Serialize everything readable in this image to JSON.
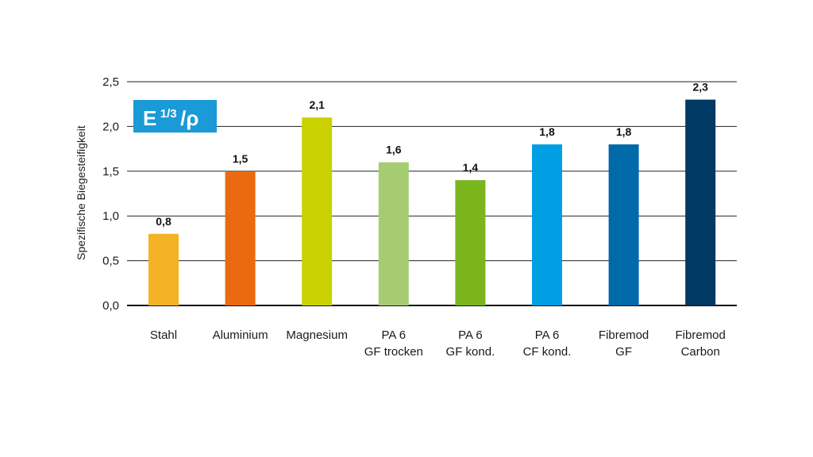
{
  "chart_data": {
    "type": "bar",
    "categories": [
      [
        "Stahl"
      ],
      [
        "Aluminium"
      ],
      [
        "Magnesium"
      ],
      [
        "PA 6",
        "GF trocken"
      ],
      [
        "PA 6",
        "GF kond."
      ],
      [
        "PA 6",
        "CF kond."
      ],
      [
        "Fibremod",
        "GF"
      ],
      [
        "Fibremod",
        "Carbon"
      ]
    ],
    "values": [
      0.8,
      1.5,
      2.1,
      1.6,
      1.4,
      1.8,
      1.8,
      2.3
    ],
    "data_labels": [
      "0,8",
      "1,5",
      "2,1",
      "1,6",
      "1,4",
      "1,8",
      "1,8",
      "2,3"
    ],
    "colors": [
      "#f4b324",
      "#e96a10",
      "#c9d200",
      "#a6cc72",
      "#7ab51d",
      "#009fe3",
      "#0069aa",
      "#003964"
    ],
    "ylabel": "Spezifische Biegesteifigkeit",
    "ylim": [
      0,
      2.5
    ],
    "yticks": [
      0,
      0.5,
      1.0,
      1.5,
      2.0,
      2.5
    ],
    "ytick_labels": [
      "0,0",
      "0,5",
      "1,0",
      "1,5",
      "2,0",
      "2,5"
    ],
    "grid": true,
    "badge": {
      "main": "E",
      "exponent": "1/3",
      "divisor": "/ρ",
      "color": "#1a9ad6"
    }
  }
}
